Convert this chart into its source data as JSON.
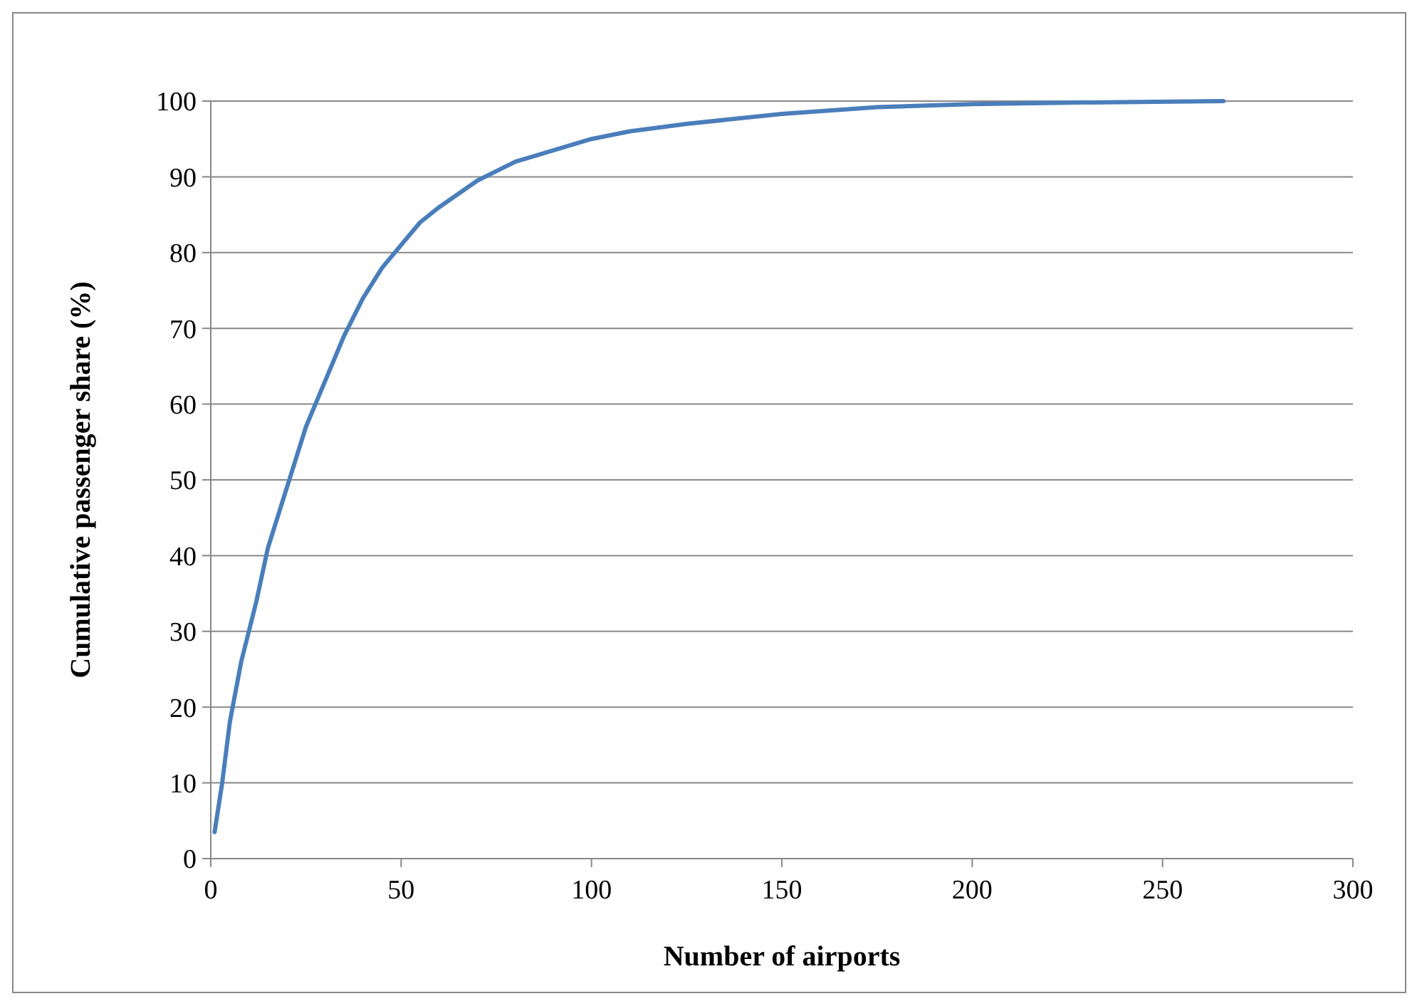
{
  "chart_data": {
    "type": "line",
    "xlabel": "Number of airports",
    "ylabel": "Cumulative passenger share (%)",
    "xlim": [
      0,
      300
    ],
    "xticks": [
      0,
      50,
      100,
      150,
      200,
      250,
      300
    ],
    "ylim": [
      0,
      100
    ],
    "yticks": [
      0,
      10,
      20,
      30,
      40,
      50,
      60,
      70,
      80,
      90,
      100
    ],
    "grid": "y",
    "marker": "none",
    "line_style": "solid",
    "series": [
      {
        "color": "#4a7ebb",
        "x": [
          1,
          3,
          5,
          8,
          12,
          15,
          20,
          25,
          30,
          35,
          40,
          45,
          50,
          55,
          60,
          70,
          80,
          90,
          100,
          110,
          125,
          150,
          175,
          200,
          225,
          266
        ],
        "values": [
          3.5,
          10,
          18,
          26,
          34,
          41,
          49,
          57,
          63,
          69,
          74,
          78,
          81,
          84,
          86,
          89.5,
          92,
          93.5,
          95,
          96,
          97,
          98.3,
          99.2,
          99.6,
          99.8,
          100
        ]
      }
    ]
  }
}
